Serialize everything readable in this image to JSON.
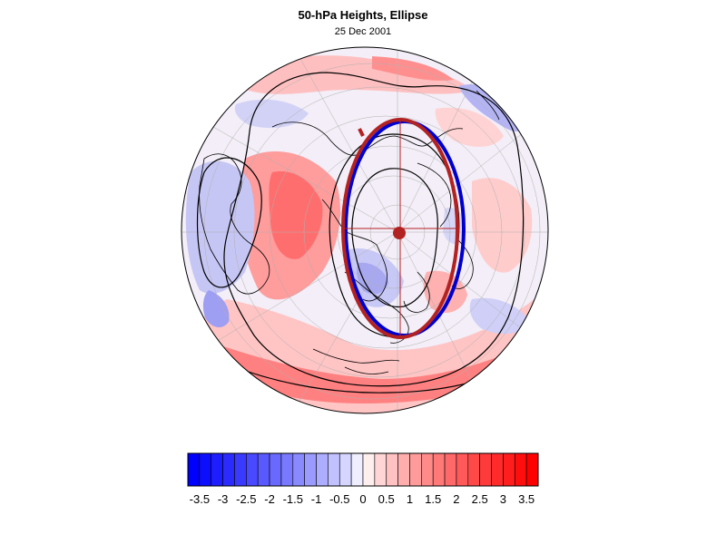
{
  "figure": {
    "title": "50-hPa Heights, Ellipse",
    "subtitle": "25 Dec 2001"
  },
  "colorbar": {
    "min": -3.75,
    "max": 3.75,
    "step": 0.25,
    "labels": [
      "-3.5",
      "-3",
      "-2.5",
      "-2",
      "-1.5",
      "-1",
      "-0.5",
      "0",
      "0.5",
      "1",
      "1.5",
      "2",
      "2.5",
      "3",
      "3.5"
    ],
    "low_color": "#0000ff",
    "mid_color": "#ffffff",
    "high_color": "#ff0000"
  },
  "map": {
    "projection": "orthographic",
    "hemisphere": "northern",
    "ellipse_colors": {
      "fit": "#b22222",
      "observed": "#0000cd"
    },
    "center_marker_color": "#b22222"
  }
}
